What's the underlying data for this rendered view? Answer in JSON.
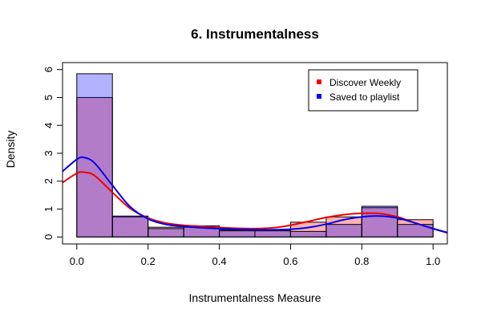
{
  "chart_data": {
    "type": "histogram",
    "title": "6. Instrumentalness",
    "xlabel": "Instrumentalness Measure",
    "ylabel": "Density",
    "xlim": [
      -0.04,
      1.04
    ],
    "ylim": [
      -0.25,
      6.25
    ],
    "x_ticks": [
      0.0,
      0.2,
      0.4,
      0.6,
      0.8,
      1.0
    ],
    "x_tick_labels": [
      "0.0",
      "0.2",
      "0.4",
      "0.6",
      "0.8",
      "1.0"
    ],
    "y_ticks": [
      0,
      1,
      2,
      3,
      4,
      5,
      6
    ],
    "y_tick_labels": [
      "0",
      "1",
      "2",
      "3",
      "4",
      "5",
      "6"
    ],
    "bins": [
      0.0,
      0.1,
      0.2,
      0.3,
      0.4,
      0.5,
      0.6,
      0.7,
      0.8,
      0.9,
      1.0
    ],
    "legend": {
      "position": "top-right",
      "entries": [
        {
          "label": "Discover Weekly",
          "color": "#ff0000"
        },
        {
          "label": "Saved to playlist",
          "color": "#0000ff"
        }
      ]
    },
    "series": [
      {
        "name": "Discover Weekly",
        "line_color": "#ee0000",
        "fill_color": "#ff0000",
        "fill_opacity": 0.3,
        "histogram_density": [
          5.0,
          0.72,
          0.35,
          0.4,
          0.25,
          0.25,
          0.53,
          0.72,
          1.05,
          0.62
        ],
        "density_curve": {
          "x": [
            -0.04,
            0.0,
            0.02,
            0.05,
            0.1,
            0.15,
            0.2,
            0.25,
            0.3,
            0.35,
            0.4,
            0.45,
            0.5,
            0.55,
            0.6,
            0.65,
            0.7,
            0.75,
            0.8,
            0.85,
            0.9,
            0.95,
            1.0,
            1.04
          ],
          "y": [
            1.95,
            2.28,
            2.32,
            2.2,
            1.6,
            1.02,
            0.68,
            0.5,
            0.42,
            0.38,
            0.34,
            0.31,
            0.3,
            0.33,
            0.42,
            0.56,
            0.7,
            0.8,
            0.85,
            0.84,
            0.72,
            0.5,
            0.3,
            0.15
          ]
        }
      },
      {
        "name": "Saved to playlist",
        "line_color": "#0000ee",
        "fill_color": "#0000ff",
        "fill_opacity": 0.3,
        "histogram_density": [
          5.85,
          0.75,
          0.3,
          0.35,
          0.22,
          0.22,
          0.2,
          0.45,
          1.1,
          0.45
        ],
        "density_curve": {
          "x": [
            -0.04,
            0.0,
            0.02,
            0.05,
            0.1,
            0.15,
            0.2,
            0.25,
            0.3,
            0.35,
            0.4,
            0.45,
            0.5,
            0.55,
            0.6,
            0.65,
            0.7,
            0.75,
            0.8,
            0.85,
            0.9,
            0.95,
            1.0,
            1.04
          ],
          "y": [
            2.35,
            2.78,
            2.85,
            2.65,
            1.85,
            1.08,
            0.65,
            0.45,
            0.38,
            0.33,
            0.3,
            0.28,
            0.26,
            0.26,
            0.28,
            0.34,
            0.46,
            0.62,
            0.72,
            0.75,
            0.68,
            0.5,
            0.3,
            0.16
          ]
        }
      }
    ]
  }
}
